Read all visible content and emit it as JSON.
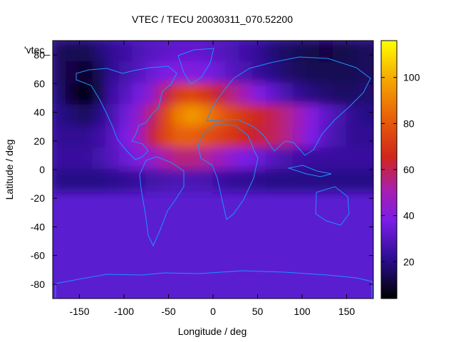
{
  "chart_data": {
    "type": "heatmap",
    "title": "VTEC / TECU 20030311_070.52200",
    "xlabel": "Longitude / deg",
    "ylabel": "Latitude / deg",
    "corner_label": "'vtec_",
    "xlim": [
      -180,
      180
    ],
    "ylim": [
      -90,
      90
    ],
    "xticks": [
      -150,
      -100,
      -50,
      0,
      50,
      100,
      150
    ],
    "yticks": [
      -80,
      -60,
      -40,
      -20,
      0,
      20,
      40,
      60,
      80
    ],
    "colorbar": {
      "range": [
        4,
        116
      ],
      "ticks": [
        20,
        40,
        60,
        80,
        100
      ],
      "palette": "black-blue-purple-red-orange-yellow"
    },
    "grid": {
      "lon_start": -180,
      "lon_step": 15,
      "lat_start": 90,
      "lat_step": -15,
      "rows": [
        [
          15,
          14,
          14,
          18,
          22,
          25,
          28,
          30,
          32,
          33,
          33,
          32,
          30,
          28,
          25,
          22,
          18,
          16,
          14,
          13,
          12,
          13,
          14,
          15,
          15
        ],
        [
          15,
          12,
          9,
          14,
          22,
          26,
          30,
          34,
          38,
          40,
          40,
          38,
          34,
          30,
          27,
          23,
          20,
          17,
          15,
          14,
          14,
          14,
          14,
          15,
          15
        ],
        [
          17,
          10,
          6,
          13,
          25,
          30,
          36,
          45,
          60,
          72,
          75,
          70,
          62,
          55,
          48,
          40,
          33,
          27,
          22,
          19,
          17,
          16,
          16,
          17,
          17
        ],
        [
          20,
          18,
          15,
          20,
          27,
          35,
          45,
          58,
          75,
          90,
          95,
          90,
          82,
          75,
          70,
          65,
          60,
          55,
          48,
          40,
          32,
          27,
          22,
          20,
          20
        ],
        [
          22,
          22,
          22,
          25,
          30,
          38,
          48,
          62,
          75,
          82,
          82,
          78,
          74,
          70,
          65,
          62,
          60,
          55,
          47,
          38,
          30,
          26,
          22,
          22,
          22
        ],
        [
          24,
          24,
          24,
          26,
          30,
          34,
          40,
          45,
          52,
          56,
          56,
          53,
          48,
          42,
          38,
          34,
          30,
          27,
          25,
          24,
          24,
          24,
          24,
          24,
          24
        ],
        [
          20,
          20,
          20,
          20,
          21,
          22,
          24,
          26,
          27,
          28,
          28,
          27,
          25,
          23,
          22,
          21,
          20,
          20,
          20,
          20,
          20,
          20,
          20,
          20,
          20
        ]
      ]
    }
  }
}
